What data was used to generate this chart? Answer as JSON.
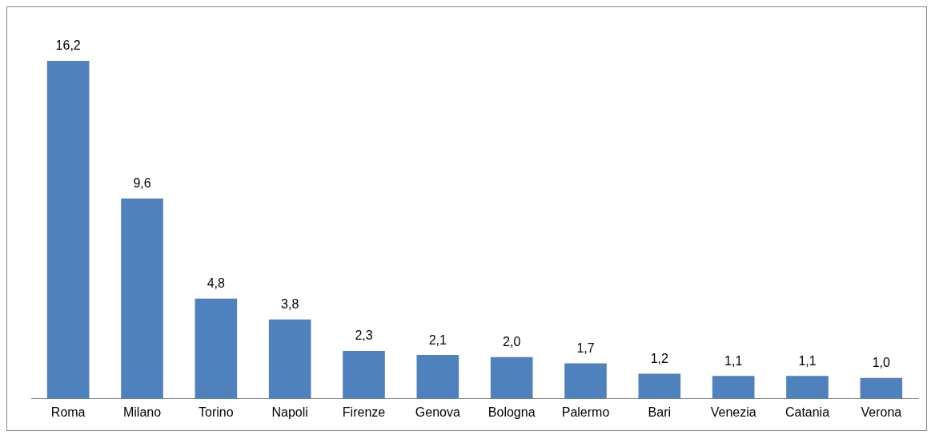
{
  "chart_data": {
    "type": "bar",
    "categories": [
      "Roma",
      "Milano",
      "Torino",
      "Napoli",
      "Firenze",
      "Genova",
      "Bologna",
      "Palermo",
      "Bari",
      "Venezia",
      "Catania",
      "Verona"
    ],
    "values": [
      16.2,
      9.6,
      4.8,
      3.8,
      2.3,
      2.1,
      2.0,
      1.7,
      1.2,
      1.1,
      1.1,
      1.0
    ],
    "value_labels": [
      "16,2",
      "9,6",
      "4,8",
      "3,8",
      "2,3",
      "2,1",
      "2,0",
      "1,7",
      "1,2",
      "1,1",
      "1,1",
      "1,0"
    ],
    "color": "#4f81bd",
    "grid": false,
    "legend": false
  }
}
